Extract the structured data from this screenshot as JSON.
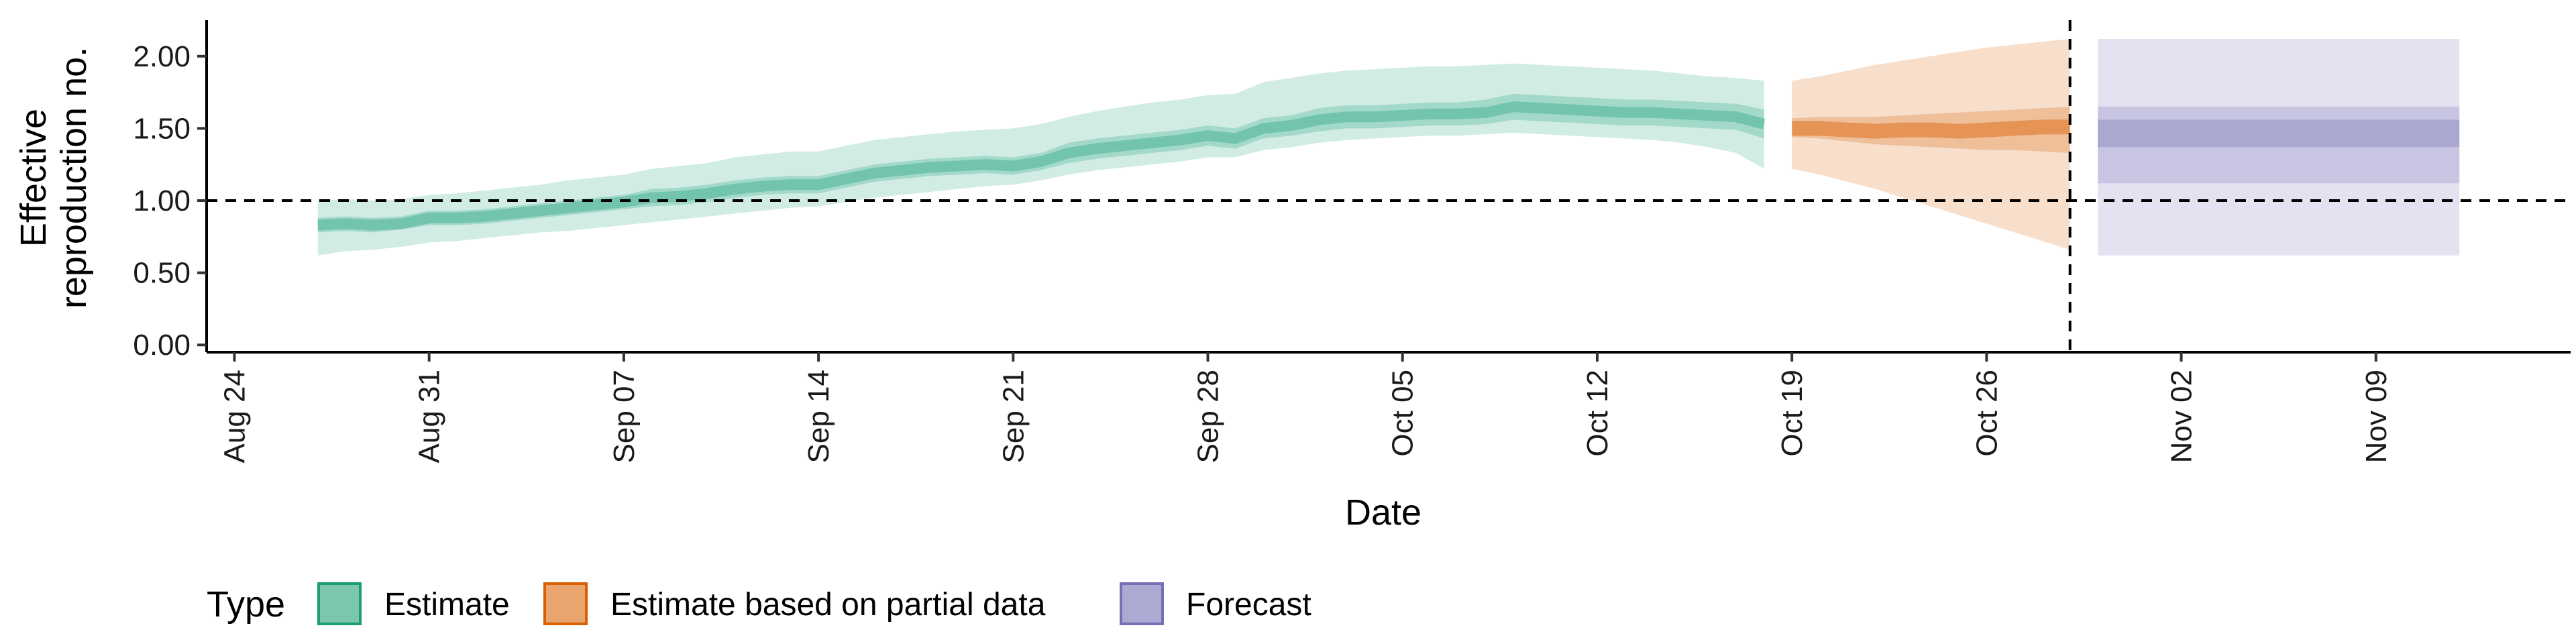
{
  "chart_data": {
    "type": "area",
    "xlabel": "Date",
    "ylabel_lines": [
      "Effective",
      "reproduction no."
    ],
    "ylim": [
      -0.05,
      2.25
    ],
    "yticks": [
      0,
      0.5,
      1,
      1.5,
      2
    ],
    "ytick_labels": [
      "0.00",
      "0.50",
      "1.00",
      "1.50",
      "2.00"
    ],
    "xlim": [
      "2020-08-23",
      "2020-11-16"
    ],
    "xticks": [
      "2020-08-24",
      "2020-08-31",
      "2020-09-07",
      "2020-09-14",
      "2020-09-21",
      "2020-09-28",
      "2020-10-05",
      "2020-10-12",
      "2020-10-19",
      "2020-10-26",
      "2020-11-02",
      "2020-11-09"
    ],
    "xtick_labels": [
      "Aug 24",
      "Aug 31",
      "Sep 07",
      "Sep 14",
      "Sep 21",
      "Sep 28",
      "Oct 05",
      "Oct 12",
      "Oct 19",
      "Oct 26",
      "Nov 02",
      "Nov 09"
    ],
    "reference_hline": 1.0,
    "reference_vline": "2020-10-29",
    "legend": {
      "title": "Type",
      "position": "bottom-left",
      "entries": [
        {
          "label": "Estimate",
          "fill": "#7ac7ab",
          "stroke": "#1b9e77"
        },
        {
          "label": "Estimate based on partial data",
          "fill": "#eaa56f",
          "stroke": "#d95f02"
        },
        {
          "label": "Forecast",
          "fill": "#aca9d2",
          "stroke": "#7570b3"
        }
      ]
    },
    "series": [
      {
        "name": "Estimate",
        "color": "#1b9e77",
        "x": [
          "2020-08-27",
          "2020-08-28",
          "2020-08-29",
          "2020-08-30",
          "2020-08-31",
          "2020-09-01",
          "2020-09-02",
          "2020-09-03",
          "2020-09-04",
          "2020-09-05",
          "2020-09-06",
          "2020-09-07",
          "2020-09-08",
          "2020-09-09",
          "2020-09-10",
          "2020-09-11",
          "2020-09-12",
          "2020-09-13",
          "2020-09-14",
          "2020-09-15",
          "2020-09-16",
          "2020-09-17",
          "2020-09-18",
          "2020-09-19",
          "2020-09-20",
          "2020-09-21",
          "2020-09-22",
          "2020-09-23",
          "2020-09-24",
          "2020-09-25",
          "2020-09-26",
          "2020-09-27",
          "2020-09-28",
          "2020-09-29",
          "2020-09-30",
          "2020-10-01",
          "2020-10-02",
          "2020-10-03",
          "2020-10-04",
          "2020-10-05",
          "2020-10-06",
          "2020-10-07",
          "2020-10-08",
          "2020-10-09",
          "2020-10-10",
          "2020-10-11",
          "2020-10-12",
          "2020-10-13",
          "2020-10-14",
          "2020-10-15",
          "2020-10-16",
          "2020-10-17",
          "2020-10-18"
        ],
        "median": [
          0.83,
          0.84,
          0.83,
          0.84,
          0.88,
          0.88,
          0.89,
          0.91,
          0.93,
          0.95,
          0.97,
          0.99,
          1.02,
          1.03,
          1.05,
          1.08,
          1.1,
          1.11,
          1.11,
          1.15,
          1.19,
          1.21,
          1.23,
          1.24,
          1.25,
          1.24,
          1.27,
          1.33,
          1.36,
          1.38,
          1.4,
          1.42,
          1.45,
          1.43,
          1.5,
          1.52,
          1.56,
          1.58,
          1.58,
          1.59,
          1.6,
          1.6,
          1.61,
          1.65,
          1.64,
          1.63,
          1.62,
          1.61,
          1.61,
          1.6,
          1.59,
          1.58,
          1.53
        ],
        "lower_50": [
          0.78,
          0.79,
          0.78,
          0.8,
          0.83,
          0.83,
          0.84,
          0.86,
          0.88,
          0.9,
          0.92,
          0.94,
          0.96,
          0.97,
          0.99,
          1.02,
          1.04,
          1.05,
          1.05,
          1.09,
          1.13,
          1.15,
          1.17,
          1.18,
          1.19,
          1.18,
          1.21,
          1.26,
          1.29,
          1.31,
          1.33,
          1.35,
          1.38,
          1.36,
          1.43,
          1.45,
          1.48,
          1.5,
          1.5,
          1.51,
          1.52,
          1.52,
          1.53,
          1.56,
          1.55,
          1.54,
          1.53,
          1.52,
          1.52,
          1.51,
          1.5,
          1.49,
          1.43
        ],
        "upper_50": [
          0.88,
          0.89,
          0.88,
          0.89,
          0.93,
          0.93,
          0.94,
          0.96,
          0.98,
          1.0,
          1.02,
          1.04,
          1.08,
          1.09,
          1.11,
          1.14,
          1.16,
          1.17,
          1.17,
          1.21,
          1.25,
          1.27,
          1.29,
          1.3,
          1.31,
          1.3,
          1.33,
          1.4,
          1.43,
          1.45,
          1.47,
          1.49,
          1.52,
          1.5,
          1.57,
          1.59,
          1.64,
          1.66,
          1.66,
          1.67,
          1.68,
          1.68,
          1.7,
          1.74,
          1.73,
          1.72,
          1.71,
          1.7,
          1.7,
          1.69,
          1.68,
          1.67,
          1.63
        ],
        "lower_90": [
          0.62,
          0.65,
          0.66,
          0.68,
          0.71,
          0.72,
          0.74,
          0.76,
          0.78,
          0.79,
          0.81,
          0.83,
          0.85,
          0.87,
          0.89,
          0.91,
          0.93,
          0.95,
          0.96,
          0.99,
          1.02,
          1.04,
          1.06,
          1.08,
          1.1,
          1.11,
          1.14,
          1.18,
          1.21,
          1.23,
          1.25,
          1.27,
          1.3,
          1.3,
          1.35,
          1.37,
          1.4,
          1.42,
          1.43,
          1.44,
          1.45,
          1.45,
          1.46,
          1.47,
          1.46,
          1.45,
          1.44,
          1.43,
          1.42,
          1.4,
          1.37,
          1.33,
          1.22
        ],
        "upper_90": [
          1.0,
          1.01,
          1.0,
          1.01,
          1.04,
          1.05,
          1.07,
          1.09,
          1.11,
          1.14,
          1.16,
          1.18,
          1.22,
          1.24,
          1.26,
          1.3,
          1.32,
          1.34,
          1.34,
          1.38,
          1.42,
          1.44,
          1.46,
          1.48,
          1.49,
          1.5,
          1.53,
          1.58,
          1.62,
          1.65,
          1.68,
          1.7,
          1.73,
          1.74,
          1.82,
          1.85,
          1.88,
          1.9,
          1.91,
          1.92,
          1.93,
          1.93,
          1.94,
          1.95,
          1.94,
          1.93,
          1.92,
          1.91,
          1.9,
          1.88,
          1.86,
          1.85,
          1.83
        ]
      },
      {
        "name": "Estimate based on partial data",
        "color": "#d95f02",
        "x": [
          "2020-10-19",
          "2020-10-20",
          "2020-10-21",
          "2020-10-22",
          "2020-10-23",
          "2020-10-24",
          "2020-10-25",
          "2020-10-26",
          "2020-10-27",
          "2020-10-28",
          "2020-10-29"
        ],
        "median": [
          1.5,
          1.5,
          1.49,
          1.48,
          1.49,
          1.49,
          1.48,
          1.49,
          1.5,
          1.51,
          1.51
        ],
        "lower_50": [
          1.44,
          1.43,
          1.41,
          1.39,
          1.38,
          1.37,
          1.36,
          1.35,
          1.35,
          1.34,
          1.33
        ],
        "upper_50": [
          1.57,
          1.58,
          1.58,
          1.58,
          1.59,
          1.6,
          1.61,
          1.62,
          1.63,
          1.64,
          1.65
        ],
        "lower_90": [
          1.22,
          1.18,
          1.13,
          1.08,
          1.02,
          0.96,
          0.9,
          0.84,
          0.78,
          0.72,
          0.66
        ],
        "upper_90": [
          1.83,
          1.86,
          1.9,
          1.94,
          1.97,
          2.0,
          2.03,
          2.06,
          2.08,
          2.1,
          2.12
        ]
      },
      {
        "name": "Forecast",
        "color": "#7570b3",
        "x": [
          "2020-10-30",
          "2020-11-12"
        ],
        "median": [
          1.46,
          1.46
        ],
        "lower_20": [
          1.37,
          1.37
        ],
        "upper_20": [
          1.56,
          1.56
        ],
        "lower_50": [
          1.12,
          1.12
        ],
        "upper_50": [
          1.65,
          1.65
        ],
        "lower_90": [
          0.62,
          0.62
        ],
        "upper_90": [
          2.12,
          2.12
        ]
      }
    ]
  }
}
